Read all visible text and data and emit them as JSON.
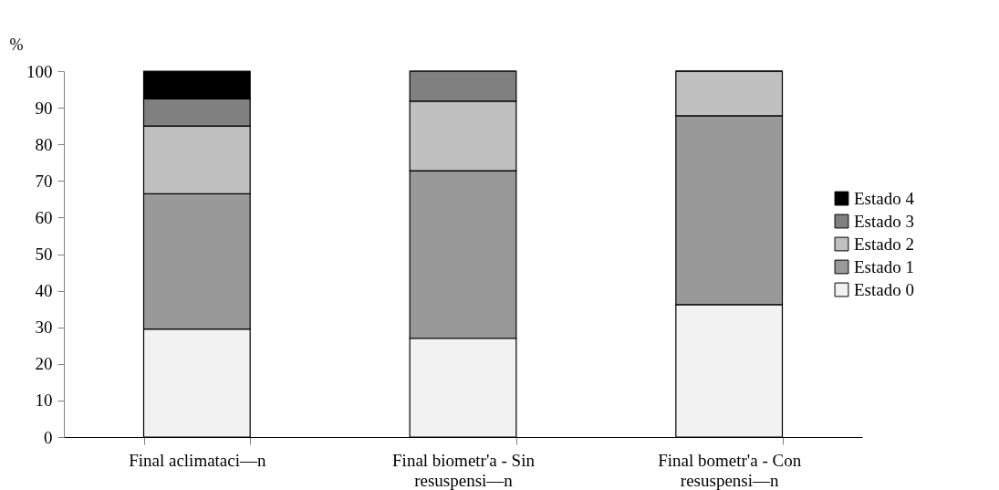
{
  "chart_data": {
    "type": "bar",
    "stacked": true,
    "ylabel": "%",
    "categories": [
      "Final aclimataci—n",
      "Final biometr'a - Sin resuspensi—n",
      "Final bometr'a - Con resuspensi—n"
    ],
    "series": [
      {
        "name": "Estado 0",
        "color": "#f2f2f2",
        "values": [
          29.5,
          27.0,
          36.2
        ]
      },
      {
        "name": "Estado 1",
        "color": "#999999",
        "values": [
          37.0,
          45.8,
          51.6
        ]
      },
      {
        "name": "Estado 2",
        "color": "#c0c0c0",
        "values": [
          18.5,
          19.0,
          12.2
        ]
      },
      {
        "name": "Estado 3",
        "color": "#808080",
        "values": [
          7.4,
          8.2,
          0
        ]
      },
      {
        "name": "Estado 4",
        "color": "#000000",
        "values": [
          7.6,
          0,
          0
        ]
      }
    ],
    "ylim": [
      0,
      100
    ],
    "yticks": [
      0,
      10,
      20,
      30,
      40,
      50,
      60,
      70,
      80,
      90,
      100
    ],
    "grid": false,
    "legend": "right"
  }
}
